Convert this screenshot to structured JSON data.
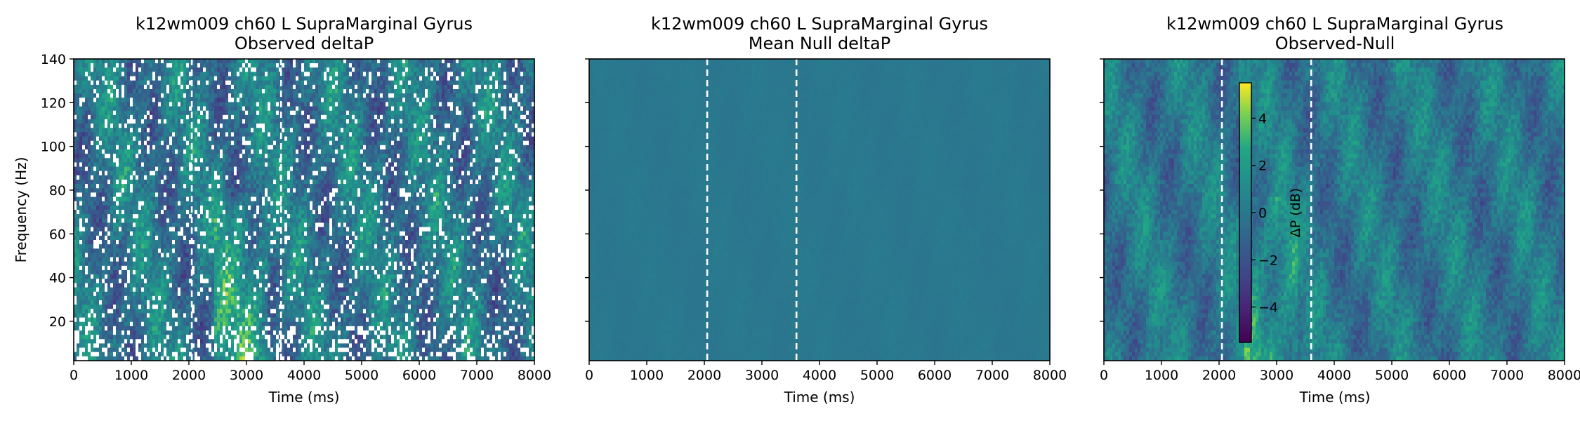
{
  "figure": {
    "panels": [
      {
        "title_line1": "k12wm009 ch60 L SupraMarginal Gyrus",
        "title_line2": "Observed deltaP"
      },
      {
        "title_line1": "k12wm009 ch60 L SupraMarginal Gyrus",
        "title_line2": "Mean Null deltaP"
      },
      {
        "title_line1": "k12wm009 ch60 L SupraMarginal Gyrus",
        "title_line2": "Observed-Null"
      }
    ],
    "xlabel": "Time (ms)",
    "ylabel": "Frequency (Hz)",
    "colorbar_label": "ΔP (dB)"
  },
  "chart_data": [
    {
      "type": "heatmap",
      "title": "k12wm009 ch60 L SupraMarginal Gyrus Observed deltaP",
      "xlabel": "Time (ms)",
      "ylabel": "Frequency (Hz)",
      "xlim": [
        0,
        8000
      ],
      "ylim": [
        2,
        140
      ],
      "x_ticks": [
        0,
        1000,
        2000,
        3000,
        4000,
        5000,
        6000,
        7000,
        8000
      ],
      "y_ticks": [
        20,
        40,
        60,
        80,
        100,
        120,
        140
      ],
      "colormap": "viridis",
      "vmin": -5.5,
      "vmax": 5.5,
      "has_nan_gaps": true,
      "vlines_x": [
        2050,
        3600
      ]
    },
    {
      "type": "heatmap",
      "title": "k12wm009 ch60 L SupraMarginal Gyrus Mean Null deltaP",
      "xlabel": "Time (ms)",
      "xlim": [
        0,
        8000
      ],
      "ylim": [
        2,
        140
      ],
      "x_ticks": [
        0,
        1000,
        2000,
        3000,
        4000,
        5000,
        6000,
        7000,
        8000
      ],
      "colormap": "viridis",
      "vmin": -5.5,
      "vmax": 5.5,
      "has_nan_gaps": false,
      "vlines_x": [
        2050,
        3600
      ]
    },
    {
      "type": "heatmap",
      "title": "k12wm009 ch60 L SupraMarginal Gyrus Observed-Null",
      "xlabel": "Time (ms)",
      "xlim": [
        0,
        8000
      ],
      "ylim": [
        2,
        140
      ],
      "x_ticks": [
        0,
        1000,
        2000,
        3000,
        4000,
        5000,
        6000,
        7000,
        8000
      ],
      "colormap": "viridis",
      "vmin": -5.5,
      "vmax": 5.5,
      "has_nan_gaps": false,
      "vlines_x": [
        2050,
        3600
      ],
      "colorbar": {
        "label": "ΔP (dB)",
        "ticks": [
          -4,
          -2,
          0,
          2,
          4
        ],
        "range": [
          -5.5,
          5.5
        ]
      }
    }
  ]
}
